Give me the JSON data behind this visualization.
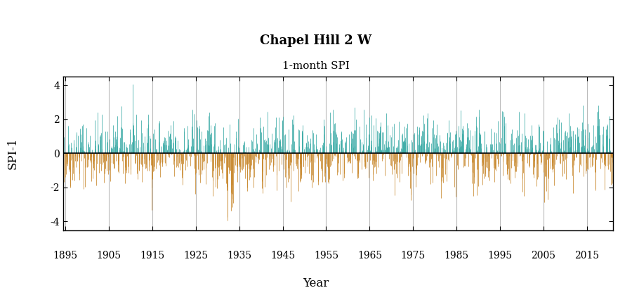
{
  "title": "Chapel Hill 2 W",
  "subtitle": "1-month SPI",
  "xlabel": "Year",
  "ylabel": "SPI-1",
  "ylim": [
    -4.5,
    4.5
  ],
  "yticks": [
    -4,
    -2,
    0,
    2,
    4
  ],
  "start_year": 1893,
  "end_year": 2020,
  "color_positive": "#39aaa5",
  "color_negative": "#c8872c",
  "color_zero_line": "#000000",
  "color_grid": "#bbbbbb",
  "xtick_years": [
    1895,
    1905,
    1915,
    1925,
    1935,
    1945,
    1955,
    1965,
    1975,
    1985,
    1995,
    2005,
    2015
  ],
  "background_color": "#ffffff",
  "title_fontsize": 13,
  "subtitle_fontsize": 11,
  "label_fontsize": 12,
  "tick_fontsize": 10,
  "seed": 42
}
